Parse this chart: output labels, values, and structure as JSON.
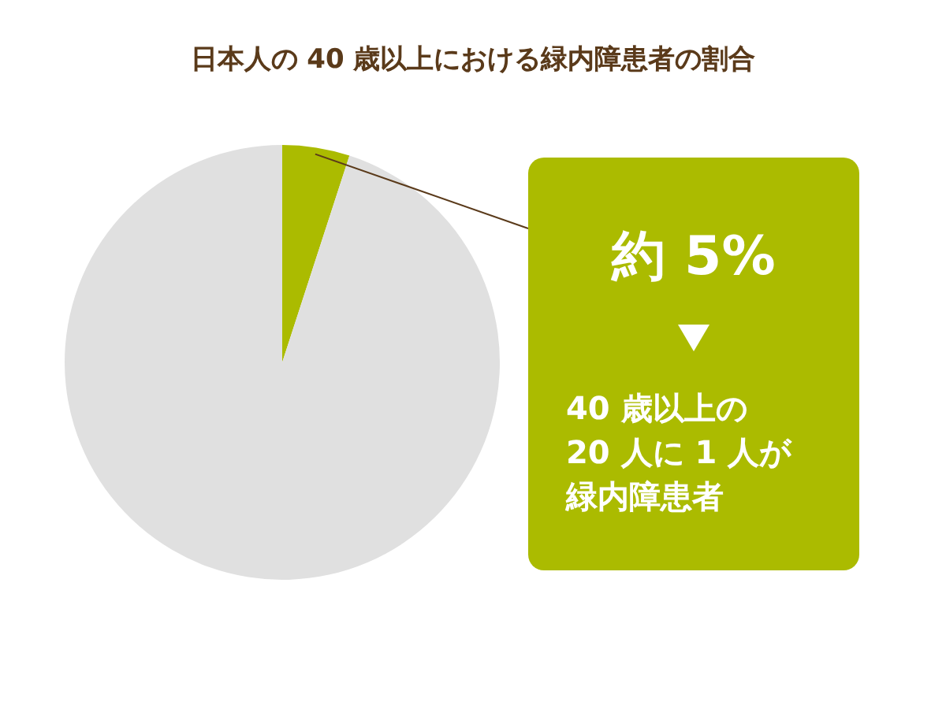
{
  "chart_data": {
    "type": "pie",
    "title": "日本人の 40 歳以上における緑内障患者の割合",
    "categories": [
      null,
      null
    ],
    "values": [
      5,
      95
    ],
    "colors": [
      "#abbb00",
      "#e0e0e0"
    ],
    "annotations": [
      "約 5%",
      "40 歳以上の",
      "20 人に 1 人が",
      "緑内障患者"
    ]
  }
}
